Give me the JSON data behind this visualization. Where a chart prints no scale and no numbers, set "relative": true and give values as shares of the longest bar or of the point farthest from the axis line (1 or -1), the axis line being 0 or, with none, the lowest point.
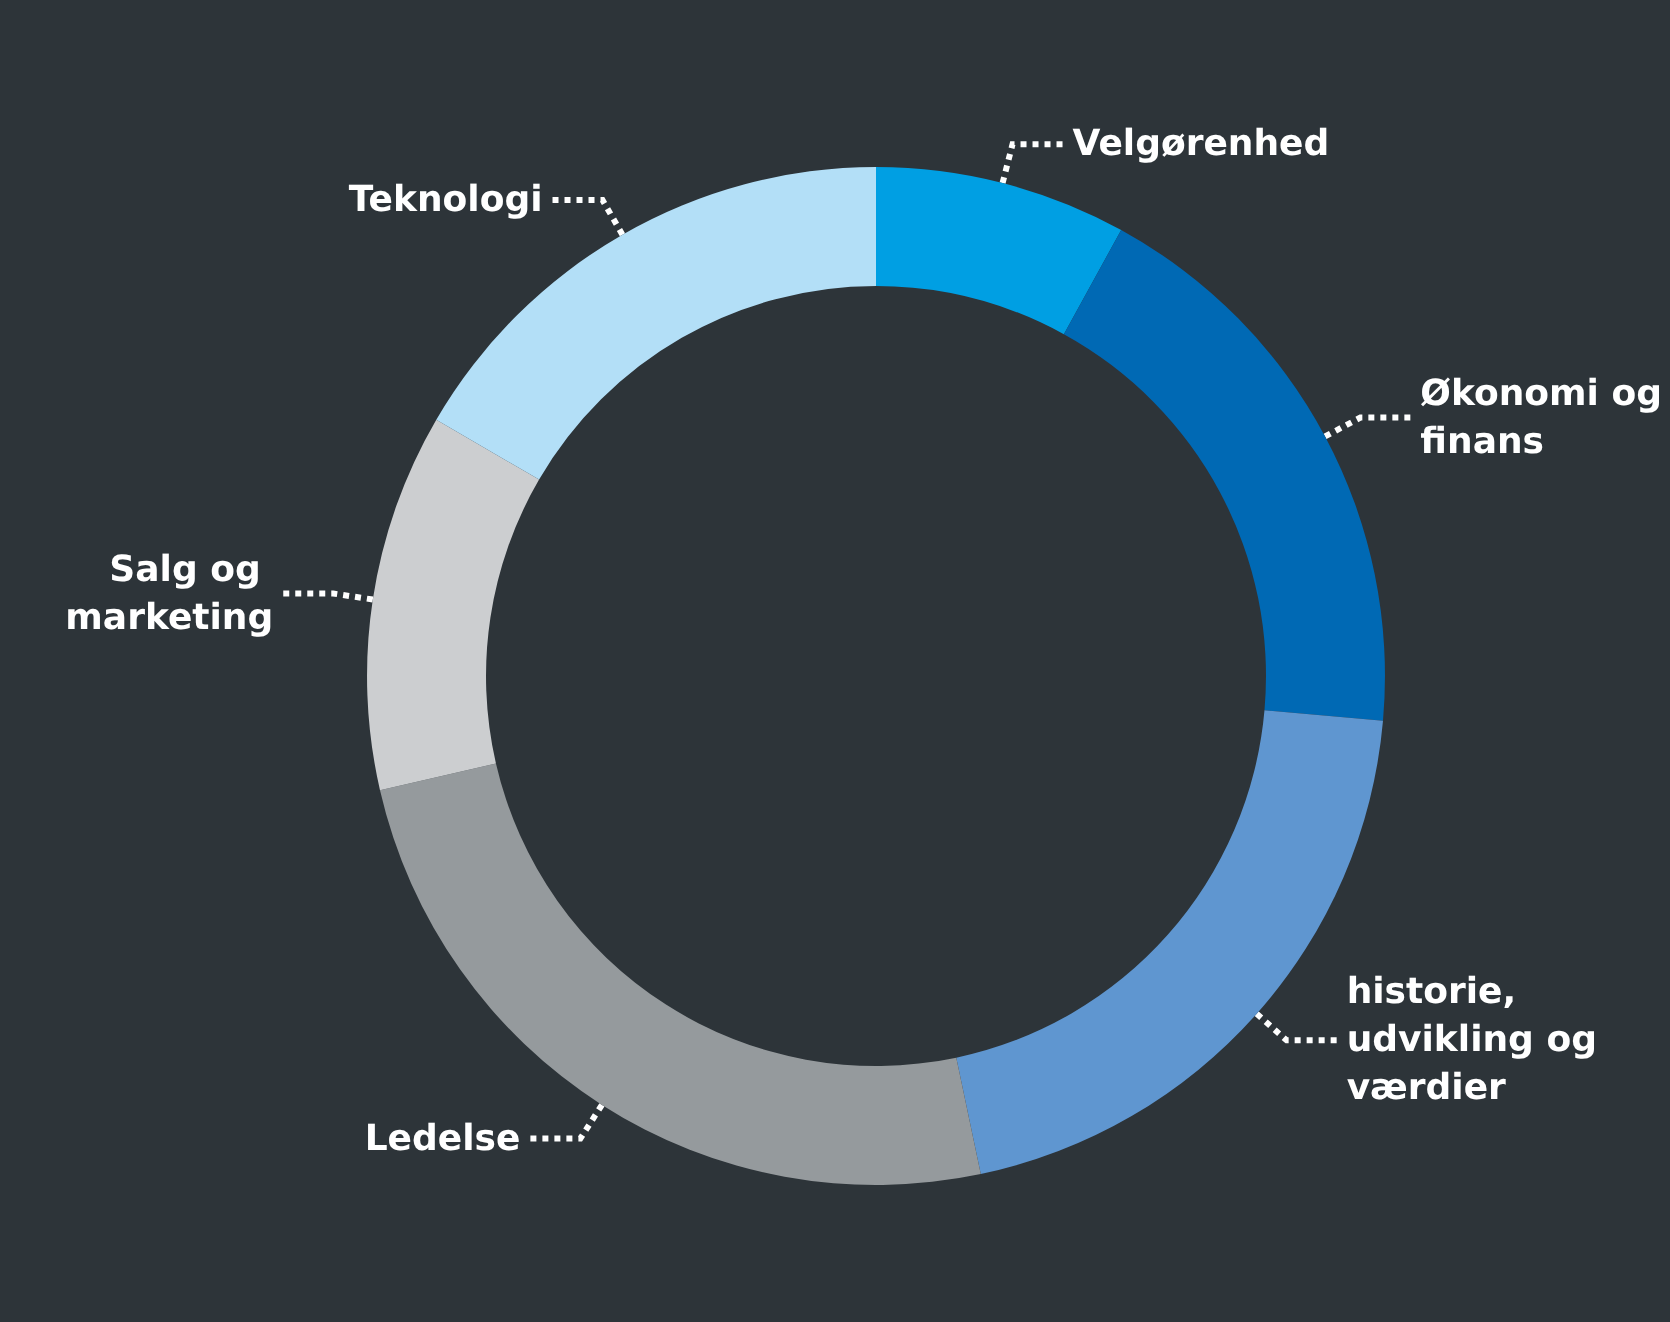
{
  "chart_data": {
    "type": "donut",
    "relative": true,
    "categories": [
      "Velgørenhed",
      "Økonomi og finans",
      "historie, udvikling og værdier",
      "Ledelse",
      "Salg og marketing",
      "Teknologi"
    ],
    "values": [
      8,
      18.4,
      20.3,
      24.7,
      12,
      16.6
    ],
    "colors": [
      "#009fe3",
      "#0069b4",
      "#5f96d0",
      "#959a9d",
      "#ccced0",
      "#b3dff7"
    ],
    "legend": false
  }
}
